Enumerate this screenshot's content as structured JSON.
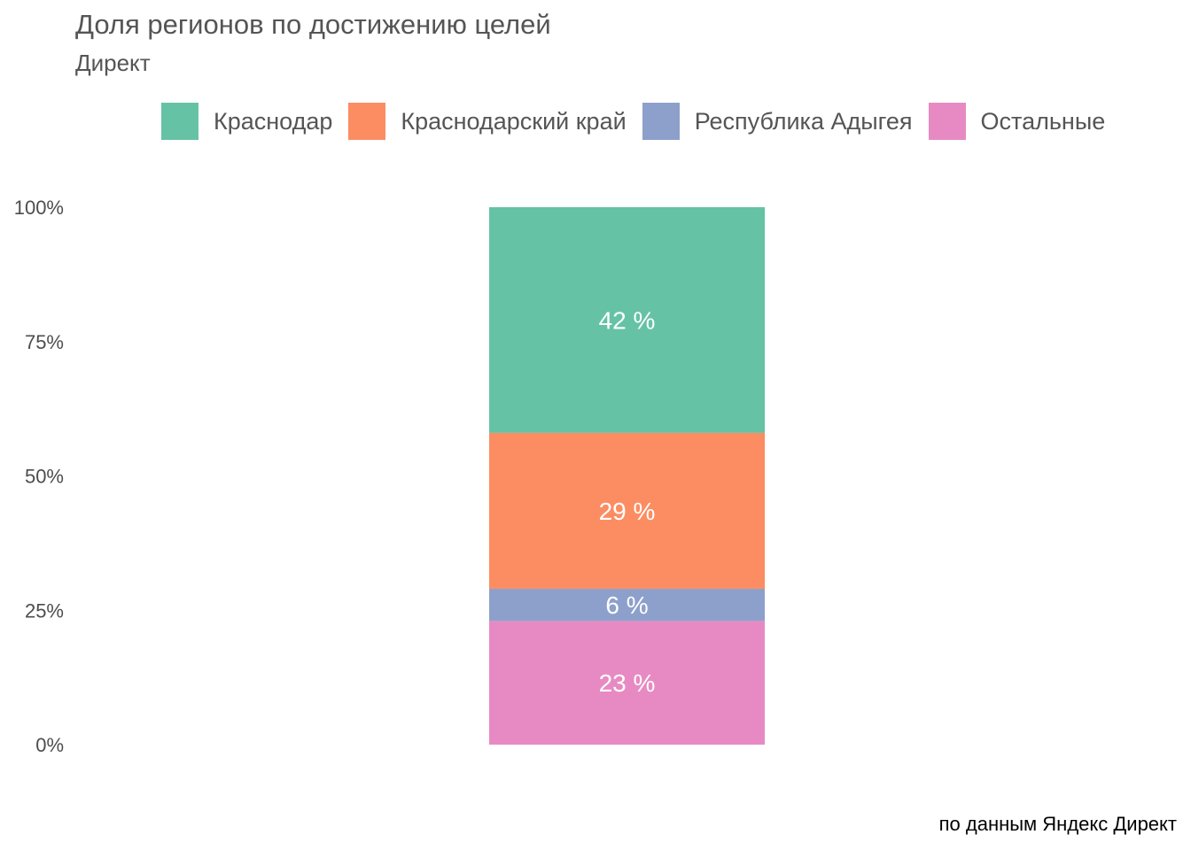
{
  "chart_data": {
    "type": "bar",
    "stacked": true,
    "normalized": true,
    "title": "Доля регионов по достижению целей",
    "subtitle": "Директ",
    "caption": "по данным Яндекс Директ",
    "xlabel": "",
    "ylabel": "",
    "ylim": [
      0,
      100
    ],
    "y_ticks": [
      "0%",
      "25%",
      "50%",
      "75%",
      "100%"
    ],
    "y_tick_values": [
      0,
      25,
      50,
      75,
      100
    ],
    "grid": false,
    "legend_position": "top",
    "categories": [
      ""
    ],
    "series": [
      {
        "name": "Краснодар",
        "values": [
          42
        ],
        "label": "42 %",
        "color": "#66C2A5"
      },
      {
        "name": "Краснодарский край",
        "values": [
          29
        ],
        "label": "29 %",
        "color": "#FC8D62"
      },
      {
        "name": "Республика Адыгея",
        "values": [
          6
        ],
        "label": "6 %",
        "color": "#8DA0CB"
      },
      {
        "name": "Остальные",
        "values": [
          23
        ],
        "label": "23 %",
        "color": "#E78AC3"
      }
    ]
  }
}
